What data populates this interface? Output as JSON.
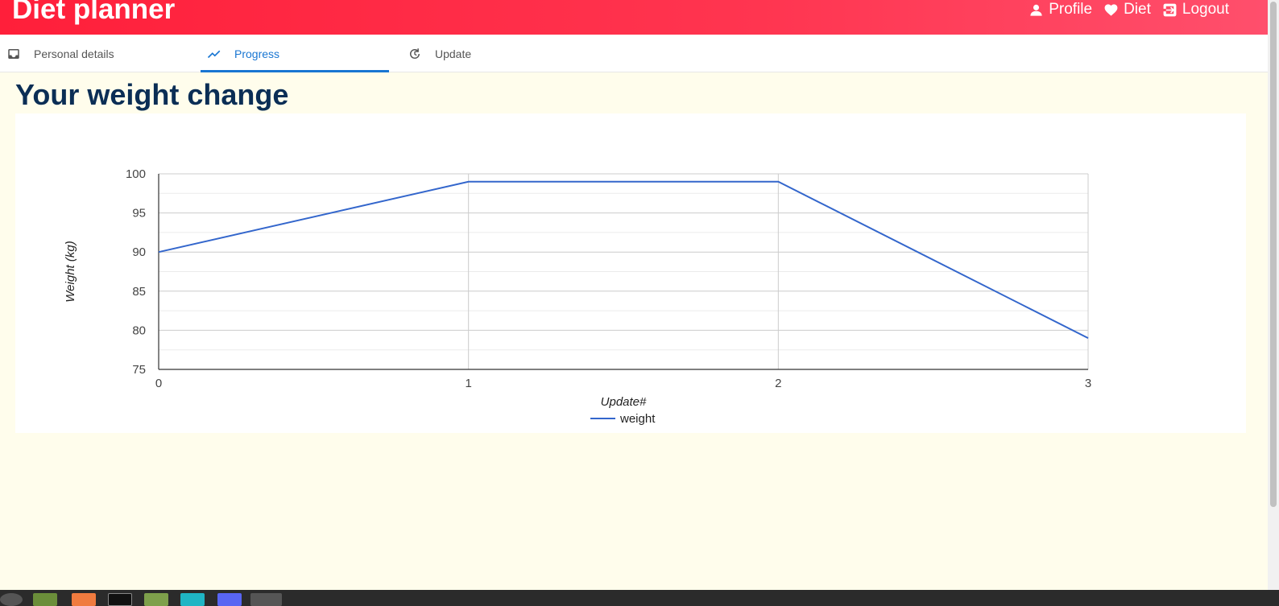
{
  "app": {
    "title": "Diet planner",
    "actions": [
      {
        "label": "Profile",
        "icon": "person-icon"
      },
      {
        "label": "Diet",
        "icon": "heart-icon"
      },
      {
        "label": "Logout",
        "icon": "logout-icon"
      }
    ]
  },
  "tabs": [
    {
      "label": "Personal details",
      "icon": "inbox-icon",
      "active": false
    },
    {
      "label": "Progress",
      "icon": "trending-up-icon",
      "active": true
    },
    {
      "label": "Update",
      "icon": "refresh-icon",
      "active": false
    }
  ],
  "page": {
    "heading": "Your weight change"
  },
  "chart_data": {
    "type": "line",
    "x": [
      0,
      1,
      2,
      3
    ],
    "series": [
      {
        "name": "weight",
        "values": [
          90,
          99,
          99,
          79
        ],
        "color": "#3366cc"
      }
    ],
    "xlabel": "Update#",
    "ylabel": "Weight (kg)",
    "xlim": [
      0,
      3
    ],
    "ylim": [
      75,
      100
    ],
    "y_ticks": [
      75,
      80,
      85,
      90,
      95,
      100
    ],
    "x_ticks": [
      0,
      1,
      2,
      3
    ],
    "grid": true,
    "legend": "bottom"
  },
  "colors": {
    "accent": "#1976d2",
    "app_bar": "#ff1f3a",
    "heading": "#0b2e55",
    "background": "#fffdec"
  }
}
